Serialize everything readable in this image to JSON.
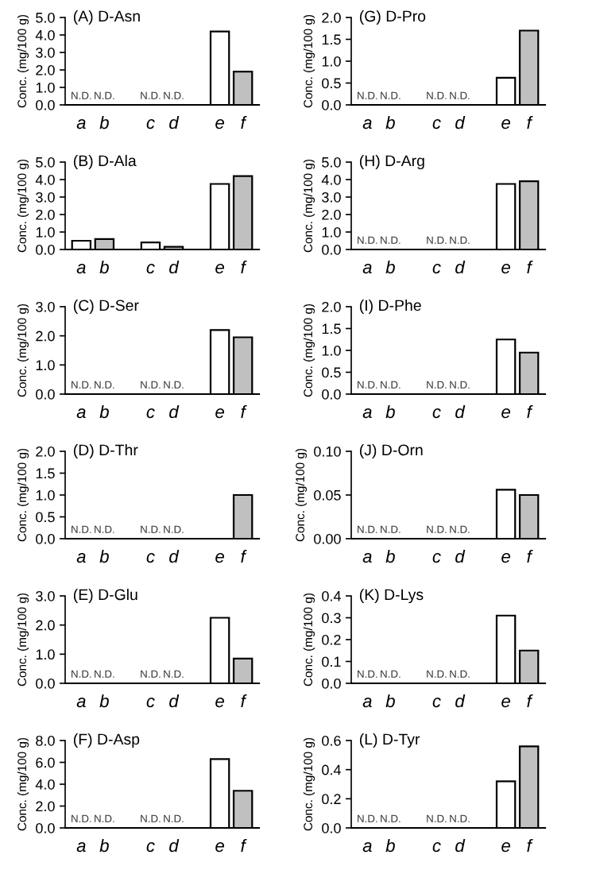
{
  "chart_data": [
    {
      "type": "bar",
      "title": "(A) D-Asn",
      "ylabel": "Conc. (mg/100 g)",
      "categories": [
        "a",
        "b",
        null,
        "c",
        "d",
        null,
        "e",
        "f"
      ],
      "values": [
        null,
        null,
        null,
        null,
        null,
        null,
        4.2,
        1.9
      ],
      "colors": [
        "#ffffff",
        "#c0c0c0",
        "#ffffff",
        "#ffffff",
        "#c0c0c0",
        "#ffffff",
        "#ffffff",
        "#c0c0c0"
      ],
      "value_labels": [
        "N.D.",
        "N.D.",
        null,
        "N.D.",
        "N.D.",
        null,
        null,
        null
      ],
      "ylim": [
        0,
        5
      ],
      "yticks": [
        {
          "value": 0,
          "label": "0.0"
        },
        {
          "value": 1,
          "label": "1.0"
        },
        {
          "value": 2,
          "label": "2.0"
        },
        {
          "value": 3,
          "label": "3.0"
        },
        {
          "value": 4,
          "label": "4.0"
        },
        {
          "value": 5,
          "label": "5.0"
        }
      ]
    },
    {
      "type": "bar",
      "title": "(B) D-Ala",
      "ylabel": "Conc. (mg/100 g)",
      "categories": [
        "a",
        "b",
        null,
        "c",
        "d",
        null,
        "e",
        "f"
      ],
      "values": [
        0.5,
        0.6,
        null,
        0.4,
        0.15,
        null,
        3.75,
        4.2
      ],
      "colors": [
        "#ffffff",
        "#c0c0c0",
        "#ffffff",
        "#ffffff",
        "#c0c0c0",
        "#ffffff",
        "#ffffff",
        "#c0c0c0"
      ],
      "ylim": [
        0,
        5
      ],
      "yticks": [
        {
          "value": 0,
          "label": "0.0"
        },
        {
          "value": 1,
          "label": "1.0"
        },
        {
          "value": 2,
          "label": "2.0"
        },
        {
          "value": 3,
          "label": "3.0"
        },
        {
          "value": 4,
          "label": "4.0"
        },
        {
          "value": 5,
          "label": "5.0"
        }
      ]
    },
    {
      "type": "bar",
      "title": "(C) D-Ser",
      "ylabel": "Conc. (mg/100 g)",
      "categories": [
        "a",
        "b",
        null,
        "c",
        "d",
        null,
        "e",
        "f"
      ],
      "values": [
        null,
        null,
        null,
        null,
        null,
        null,
        2.2,
        1.95
      ],
      "colors": [
        "#ffffff",
        "#c0c0c0",
        "#ffffff",
        "#ffffff",
        "#c0c0c0",
        "#ffffff",
        "#ffffff",
        "#c0c0c0"
      ],
      "value_labels": [
        "N.D.",
        "N.D.",
        null,
        "N.D.",
        "N.D.",
        null,
        null,
        null
      ],
      "ylim": [
        0,
        3
      ],
      "yticks": [
        {
          "value": 0,
          "label": "0.0"
        },
        {
          "value": 1,
          "label": "1.0"
        },
        {
          "value": 2,
          "label": "2.0"
        },
        {
          "value": 3,
          "label": "3.0"
        }
      ]
    },
    {
      "type": "bar",
      "title": "(D) D-Thr",
      "ylabel": "Conc. (mg/100 g)",
      "categories": [
        "a",
        "b",
        null,
        "c",
        "d",
        null,
        "e",
        "f"
      ],
      "values": [
        null,
        null,
        null,
        null,
        null,
        null,
        null,
        1.0
      ],
      "colors": [
        "#ffffff",
        "#c0c0c0",
        "#ffffff",
        "#ffffff",
        "#c0c0c0",
        "#ffffff",
        "#ffffff",
        "#c0c0c0"
      ],
      "value_labels": [
        "N.D.",
        "N.D.",
        null,
        "N.D.",
        "N.D.",
        null,
        null,
        null
      ],
      "ylim": [
        0,
        2
      ],
      "yticks": [
        {
          "value": 0,
          "label": "0.0"
        },
        {
          "value": 0.5,
          "label": "0.5"
        },
        {
          "value": 1,
          "label": "1.0"
        },
        {
          "value": 1.5,
          "label": "1.5"
        },
        {
          "value": 2,
          "label": "2.0"
        }
      ]
    },
    {
      "type": "bar",
      "title": "(E) D-Glu",
      "ylabel": "Conc. (mg/100 g)",
      "categories": [
        "a",
        "b",
        null,
        "c",
        "d",
        null,
        "e",
        "f"
      ],
      "values": [
        null,
        null,
        null,
        null,
        null,
        null,
        2.25,
        0.85
      ],
      "colors": [
        "#ffffff",
        "#c0c0c0",
        "#ffffff",
        "#ffffff",
        "#c0c0c0",
        "#ffffff",
        "#ffffff",
        "#c0c0c0"
      ],
      "value_labels": [
        "N.D.",
        "N.D.",
        null,
        "N.D.",
        "N.D.",
        null,
        null,
        null
      ],
      "ylim": [
        0,
        3
      ],
      "yticks": [
        {
          "value": 0,
          "label": "0.0"
        },
        {
          "value": 1,
          "label": "1.0"
        },
        {
          "value": 2,
          "label": "2.0"
        },
        {
          "value": 3,
          "label": "3.0"
        }
      ]
    },
    {
      "type": "bar",
      "title": "(F) D-Asp",
      "ylabel": "Conc. (mg/100 g)",
      "categories": [
        "a",
        "b",
        null,
        "c",
        "d",
        null,
        "e",
        "f"
      ],
      "values": [
        null,
        null,
        null,
        null,
        null,
        null,
        6.3,
        3.4
      ],
      "colors": [
        "#ffffff",
        "#c0c0c0",
        "#ffffff",
        "#ffffff",
        "#c0c0c0",
        "#ffffff",
        "#ffffff",
        "#c0c0c0"
      ],
      "value_labels": [
        "N.D.",
        "N.D.",
        null,
        "N.D.",
        "N.D.",
        null,
        null,
        null
      ],
      "ylim": [
        0,
        8
      ],
      "yticks": [
        {
          "value": 0,
          "label": "0.0"
        },
        {
          "value": 2,
          "label": "2.0"
        },
        {
          "value": 4,
          "label": "4.0"
        },
        {
          "value": 6,
          "label": "6.0"
        },
        {
          "value": 8,
          "label": "8.0"
        }
      ]
    },
    {
      "type": "bar",
      "title": "(G) D-Pro",
      "ylabel": "Conc. (mg/100 g)",
      "categories": [
        "a",
        "b",
        null,
        "c",
        "d",
        null,
        "e",
        "f"
      ],
      "values": [
        null,
        null,
        null,
        null,
        null,
        null,
        0.62,
        1.7
      ],
      "colors": [
        "#ffffff",
        "#c0c0c0",
        "#ffffff",
        "#ffffff",
        "#c0c0c0",
        "#ffffff",
        "#ffffff",
        "#c0c0c0"
      ],
      "value_labels": [
        "N.D.",
        "N.D.",
        null,
        "N.D.",
        "N.D.",
        null,
        null,
        null
      ],
      "ylim": [
        0,
        2
      ],
      "yticks": [
        {
          "value": 0,
          "label": "0.0"
        },
        {
          "value": 0.5,
          "label": "0.5"
        },
        {
          "value": 1,
          "label": "1.0"
        },
        {
          "value": 1.5,
          "label": "1.5"
        },
        {
          "value": 2,
          "label": "2.0"
        }
      ]
    },
    {
      "type": "bar",
      "title": "(H) D-Arg",
      "ylabel": "Conc. (mg/100 g)",
      "categories": [
        "a",
        "b",
        null,
        "c",
        "d",
        null,
        "e",
        "f"
      ],
      "values": [
        null,
        null,
        null,
        null,
        null,
        null,
        3.75,
        3.9
      ],
      "colors": [
        "#ffffff",
        "#c0c0c0",
        "#ffffff",
        "#ffffff",
        "#c0c0c0",
        "#ffffff",
        "#ffffff",
        "#c0c0c0"
      ],
      "value_labels": [
        "N.D.",
        "N.D.",
        null,
        "N.D.",
        "N.D.",
        null,
        null,
        null
      ],
      "ylim": [
        0,
        5
      ],
      "yticks": [
        {
          "value": 0,
          "label": "0.0"
        },
        {
          "value": 1,
          "label": "1.0"
        },
        {
          "value": 2,
          "label": "2.0"
        },
        {
          "value": 3,
          "label": "3.0"
        },
        {
          "value": 4,
          "label": "4.0"
        },
        {
          "value": 5,
          "label": "5.0"
        }
      ]
    },
    {
      "type": "bar",
      "title": "(I) D-Phe",
      "ylabel": "Conc. (mg/100 g)",
      "categories": [
        "a",
        "b",
        null,
        "c",
        "d",
        null,
        "e",
        "f"
      ],
      "values": [
        null,
        null,
        null,
        null,
        null,
        null,
        1.25,
        0.95
      ],
      "colors": [
        "#ffffff",
        "#c0c0c0",
        "#ffffff",
        "#ffffff",
        "#c0c0c0",
        "#ffffff",
        "#ffffff",
        "#c0c0c0"
      ],
      "value_labels": [
        "N.D.",
        "N.D.",
        null,
        "N.D.",
        "N.D.",
        null,
        null,
        null
      ],
      "ylim": [
        0,
        2
      ],
      "yticks": [
        {
          "value": 0,
          "label": "0.0"
        },
        {
          "value": 0.5,
          "label": "0.5"
        },
        {
          "value": 1,
          "label": "1.0"
        },
        {
          "value": 1.5,
          "label": "1.5"
        },
        {
          "value": 2,
          "label": "2.0"
        }
      ]
    },
    {
      "type": "bar",
      "title": "(J) D-Orn",
      "ylabel": "Conc. (mg/100 g)",
      "categories": [
        "a",
        "b",
        null,
        "c",
        "d",
        null,
        "e",
        "f"
      ],
      "values": [
        null,
        null,
        null,
        null,
        null,
        null,
        0.056,
        0.05
      ],
      "colors": [
        "#ffffff",
        "#c0c0c0",
        "#ffffff",
        "#ffffff",
        "#c0c0c0",
        "#ffffff",
        "#ffffff",
        "#c0c0c0"
      ],
      "value_labels": [
        "N.D.",
        "N.D.",
        null,
        "N.D.",
        "N.D.",
        null,
        null,
        null
      ],
      "ylim": [
        0,
        0.1
      ],
      "yticks": [
        {
          "value": 0,
          "label": "0.00"
        },
        {
          "value": 0.05,
          "label": "0.05"
        },
        {
          "value": 0.1,
          "label": "0.10"
        }
      ]
    },
    {
      "type": "bar",
      "title": "(K) D-Lys",
      "ylabel": "Conc. (mg/100 g)",
      "categories": [
        "a",
        "b",
        null,
        "c",
        "d",
        null,
        "e",
        "f"
      ],
      "values": [
        null,
        null,
        null,
        null,
        null,
        null,
        0.31,
        0.15
      ],
      "colors": [
        "#ffffff",
        "#c0c0c0",
        "#ffffff",
        "#ffffff",
        "#c0c0c0",
        "#ffffff",
        "#ffffff",
        "#c0c0c0"
      ],
      "value_labels": [
        "N.D.",
        "N.D.",
        null,
        "N.D.",
        "N.D.",
        null,
        null,
        null
      ],
      "ylim": [
        0,
        0.4
      ],
      "yticks": [
        {
          "value": 0,
          "label": "0.0"
        },
        {
          "value": 0.1,
          "label": "0.1"
        },
        {
          "value": 0.2,
          "label": "0.2"
        },
        {
          "value": 0.3,
          "label": "0.3"
        },
        {
          "value": 0.4,
          "label": "0.4"
        }
      ]
    },
    {
      "type": "bar",
      "title": "(L) D-Tyr",
      "ylabel": "Conc. (mg/100 g)",
      "categories": [
        "a",
        "b",
        null,
        "c",
        "d",
        null,
        "e",
        "f"
      ],
      "values": [
        null,
        null,
        null,
        null,
        null,
        null,
        0.32,
        0.56
      ],
      "colors": [
        "#ffffff",
        "#c0c0c0",
        "#ffffff",
        "#ffffff",
        "#c0c0c0",
        "#ffffff",
        "#ffffff",
        "#c0c0c0"
      ],
      "value_labels": [
        "N.D.",
        "N.D.",
        null,
        "N.D.",
        "N.D.",
        null,
        null,
        null
      ],
      "ylim": [
        0,
        0.6
      ],
      "yticks": [
        {
          "value": 0,
          "label": "0.0"
        },
        {
          "value": 0.2,
          "label": "0.2"
        },
        {
          "value": 0.4,
          "label": "0.4"
        },
        {
          "value": 0.6,
          "label": "0.6"
        }
      ]
    }
  ]
}
